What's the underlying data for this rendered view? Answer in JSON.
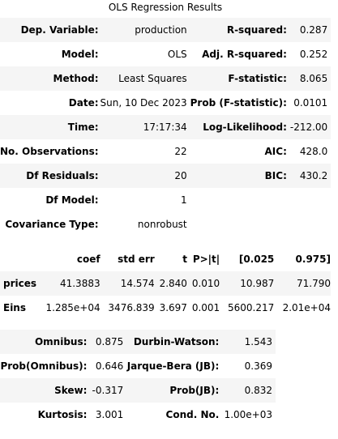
{
  "caption": "OLS Regression Results",
  "summary": [
    {
      "l1": "Dep. Variable:",
      "v1": "production",
      "l2": "R-squared:",
      "v2": "0.287"
    },
    {
      "l1": "Model:",
      "v1": "OLS",
      "l2": "Adj. R-squared:",
      "v2": "0.252"
    },
    {
      "l1": "Method:",
      "v1": "Least Squares",
      "l2": "F-statistic:",
      "v2": "8.065"
    },
    {
      "l1": "Date:",
      "v1": "Sun, 10 Dec 2023",
      "l2": "Prob (F-statistic):",
      "v2": "0.0101"
    },
    {
      "l1": "Time:",
      "v1": "17:17:34",
      "l2": "Log-Likelihood:",
      "v2": "-212.00"
    },
    {
      "l1": "No. Observations:",
      "v1": "22",
      "l2": "AIC:",
      "v2": "428.0"
    },
    {
      "l1": "Df Residuals:",
      "v1": "20",
      "l2": "BIC:",
      "v2": "430.2"
    },
    {
      "l1": "Df Model:",
      "v1": "1",
      "l2": "",
      "v2": ""
    },
    {
      "l1": "Covariance Type:",
      "v1": "nonrobust",
      "l2": "",
      "v2": ""
    }
  ],
  "coef": {
    "headers": [
      "",
      "coef",
      "std err",
      "t",
      "P>|t|",
      "[0.025",
      "0.975]"
    ],
    "rows": [
      [
        "prices",
        "41.3883",
        "14.574",
        "2.840",
        "0.010",
        "10.987",
        "71.790"
      ],
      [
        "Eins",
        "1.285e+04",
        "3476.839",
        "3.697",
        "0.001",
        "5600.217",
        "2.01e+04"
      ]
    ]
  },
  "diag": [
    {
      "l1": "Omnibus:",
      "v1": "0.875",
      "l2": "Durbin-Watson:",
      "v2": "1.543"
    },
    {
      "l1": "Prob(Omnibus):",
      "v1": "0.646",
      "l2": "Jarque-Bera (JB):",
      "v2": "0.369"
    },
    {
      "l1": "Skew:",
      "v1": "-0.317",
      "l2": "Prob(JB):",
      "v2": "0.832"
    },
    {
      "l1": "Kurtosis:",
      "v1": "3.001",
      "l2": "Cond. No.",
      "v2": "1.00e+03"
    }
  ]
}
